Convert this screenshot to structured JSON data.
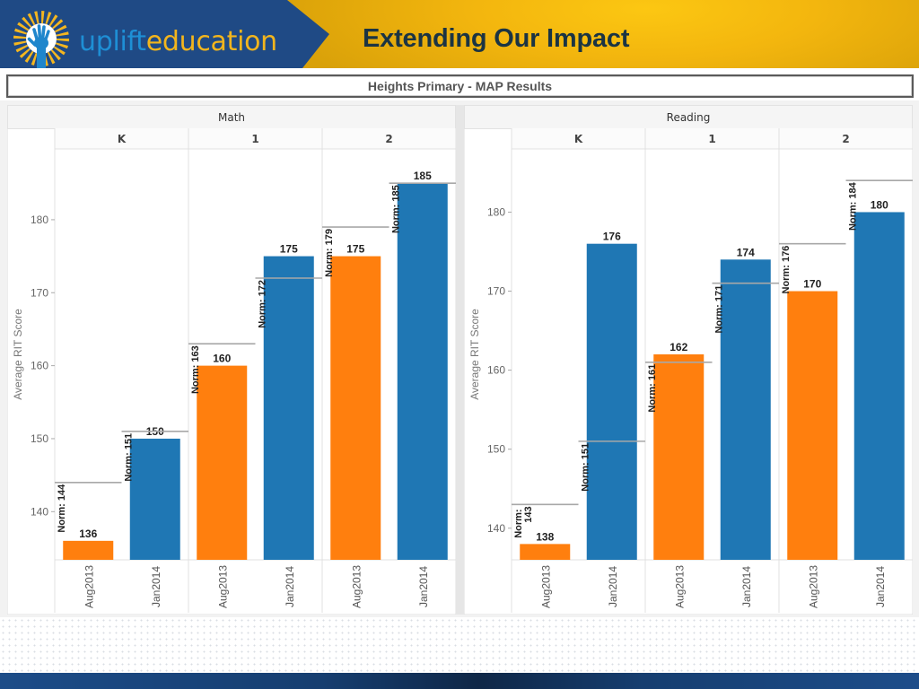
{
  "banner": {
    "brand_part1": "uplift",
    "brand_part2": "education",
    "logo_icon": "sun-hand-logo-icon",
    "title": "Extending Our Impact"
  },
  "dashboard": {
    "title": "Heights Primary - MAP Results"
  },
  "colors": {
    "navy": "#1f4a85",
    "gold": "#f5b914",
    "brand_blue": "#1e8fd5",
    "brand_gold": "#f2b51d",
    "title_text": "#1b3443"
  },
  "chart_data": [
    {
      "type": "bar",
      "title": "Math",
      "xlabel": "",
      "ylabel": "Average RIT Score",
      "ylim": [
        133.4,
        189.7
      ],
      "yticks": [
        140,
        150,
        160,
        170,
        180
      ],
      "grid": false,
      "legend": "none",
      "categories": [
        "K",
        "1",
        "2"
      ],
      "norm_prefix": "Norm: ",
      "series": [
        {
          "name": "Aug2013",
          "color": "#ff7f0e",
          "values": [
            136,
            160,
            175
          ],
          "norms": [
            144,
            163,
            179
          ]
        },
        {
          "name": "Jan2014",
          "color": "#1f77b4",
          "values": [
            150,
            175,
            185
          ],
          "norms": [
            151,
            172,
            185
          ]
        }
      ]
    },
    {
      "type": "bar",
      "title": "Reading",
      "xlabel": "",
      "ylabel": "Average RIT Score",
      "ylim": [
        136,
        188
      ],
      "yticks": [
        140,
        150,
        160,
        170,
        180
      ],
      "grid": false,
      "legend": "none",
      "categories": [
        "K",
        "1",
        "2"
      ],
      "norm_prefix": "Norm: ",
      "series": [
        {
          "name": "Aug2013",
          "color": "#ff7f0e",
          "values": [
            138,
            162,
            170
          ],
          "norms": [
            143,
            161,
            176
          ]
        },
        {
          "name": "Jan2014",
          "color": "#1f77b4",
          "values": [
            176,
            174,
            180
          ],
          "norms": [
            151,
            171,
            184
          ]
        }
      ]
    }
  ]
}
